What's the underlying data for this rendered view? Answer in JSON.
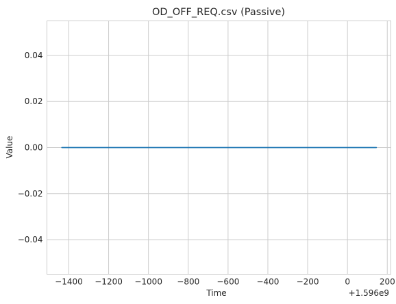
{
  "chart_data": {
    "type": "line",
    "title": "OD_OFF_REQ.csv (Passive)",
    "xlabel": "Time",
    "ylabel": "Value",
    "x_offset_label": "+1.596e9",
    "xlim": [
      -1510,
      218
    ],
    "ylim": [
      -0.055,
      0.055
    ],
    "xticks": [
      -1400,
      -1200,
      -1000,
      -800,
      -600,
      -400,
      -200,
      0,
      200
    ],
    "xtick_labels": [
      "−1400",
      "−1200",
      "−1000",
      "−800",
      "−600",
      "−400",
      "−200",
      "0",
      "200"
    ],
    "yticks": [
      -0.04,
      -0.02,
      0.0,
      0.02,
      0.04
    ],
    "ytick_labels": [
      "−0.04",
      "−0.02",
      "0.00",
      "0.02",
      "0.04"
    ],
    "grid": true,
    "series": [
      {
        "color": "#1f77b4",
        "x": [
          -1435,
          145
        ],
        "y": [
          0,
          0
        ]
      }
    ]
  }
}
